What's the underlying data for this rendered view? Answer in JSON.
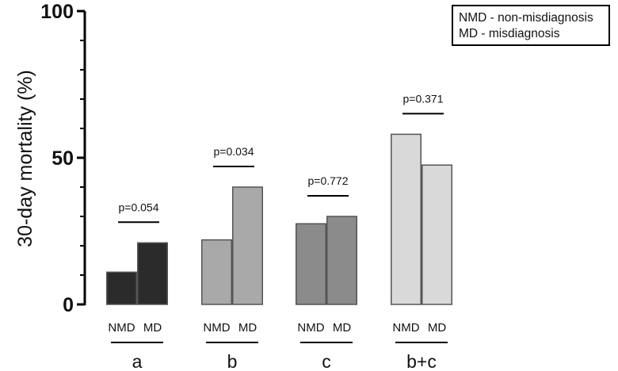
{
  "chart_data": {
    "type": "bar",
    "ylabel": "30-day mortality (%)",
    "ylim": [
      0,
      100
    ],
    "yticks": [
      0,
      50,
      100
    ],
    "groups": [
      {
        "label": "a",
        "color": "#2b2b2b",
        "pvalue": "p=0.054",
        "bars": [
          {
            "label": "NMD",
            "value": 11
          },
          {
            "label": "MD",
            "value": 21
          }
        ]
      },
      {
        "label": "b",
        "color": "#a9a9a9",
        "pvalue": "p=0.034",
        "bars": [
          {
            "label": "NMD",
            "value": 22
          },
          {
            "label": "MD",
            "value": 40
          }
        ]
      },
      {
        "label": "c",
        "color": "#8b8b8b",
        "pvalue": "p=0.772",
        "bars": [
          {
            "label": "NMD",
            "value": 27.5
          },
          {
            "label": "MD",
            "value": 30
          }
        ]
      },
      {
        "label": "b+c",
        "color": "#d9d9d9",
        "pvalue": "p=0.371",
        "bars": [
          {
            "label": "NMD",
            "value": 58
          },
          {
            "label": "MD",
            "value": 47.5
          }
        ]
      }
    ],
    "legend": [
      "NMD - non-misdiagnosis",
      "MD - misdiagnosis"
    ]
  }
}
